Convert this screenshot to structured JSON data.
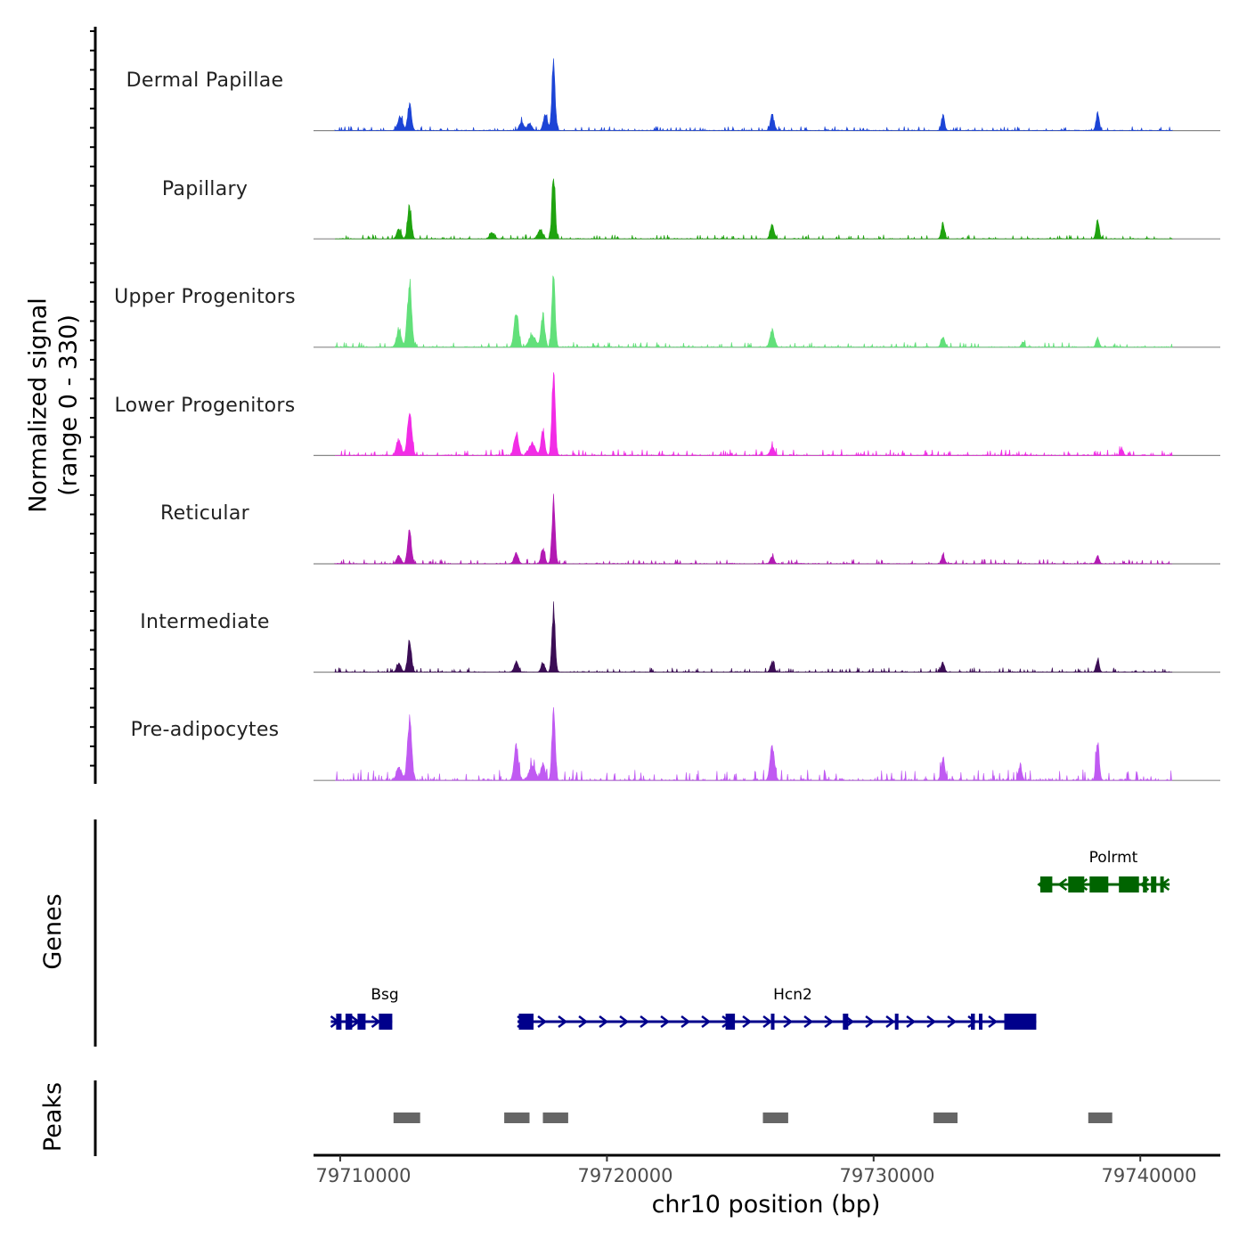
{
  "chart_data": {
    "type": "area",
    "title": "",
    "ylabel": "Normalized signal\n(range 0 - 330)",
    "ylabel_lines": [
      "Normalized signal",
      "(range 0 - 330)"
    ],
    "xlabel": "chr10 position (bp)",
    "y_range": [
      0,
      330
    ],
    "xlim": [
      79709000,
      79743000
    ],
    "x_ticks": [
      79710000,
      79720000,
      79730000,
      79740000
    ],
    "x_tick_labels": [
      "79710000",
      "79720000",
      "79730000",
      "79740000"
    ],
    "grid": false,
    "tracks": [
      {
        "name": "Dermal Papillae",
        "color": "#1c44d6",
        "bg_level": 9,
        "peaks": [
          {
            "pos": 79712250,
            "height": 65,
            "width": 90
          },
          {
            "pos": 79712600,
            "height": 122,
            "width": 70
          },
          {
            "pos": 79716800,
            "height": 42,
            "width": 80
          },
          {
            "pos": 79717100,
            "height": 35,
            "width": 80
          },
          {
            "pos": 79717700,
            "height": 75,
            "width": 80
          },
          {
            "pos": 79718000,
            "height": 305,
            "width": 60
          },
          {
            "pos": 79726200,
            "height": 70,
            "width": 70
          },
          {
            "pos": 79732600,
            "height": 70,
            "width": 60
          },
          {
            "pos": 79738400,
            "height": 80,
            "width": 60
          }
        ]
      },
      {
        "name": "Papillary",
        "color": "#1fa30f",
        "bg_level": 9,
        "peaks": [
          {
            "pos": 79712200,
            "height": 45,
            "width": 80
          },
          {
            "pos": 79712600,
            "height": 155,
            "width": 70
          },
          {
            "pos": 79715700,
            "height": 30,
            "width": 90
          },
          {
            "pos": 79717500,
            "height": 45,
            "width": 90
          },
          {
            "pos": 79718000,
            "height": 305,
            "width": 60
          },
          {
            "pos": 79726200,
            "height": 70,
            "width": 70
          },
          {
            "pos": 79732600,
            "height": 80,
            "width": 60
          },
          {
            "pos": 79738400,
            "height": 90,
            "width": 60
          }
        ]
      },
      {
        "name": "Upper Progenitors",
        "color": "#62e07a",
        "bg_level": 11,
        "peaks": [
          {
            "pos": 79712200,
            "height": 75,
            "width": 90
          },
          {
            "pos": 79712600,
            "height": 305,
            "width": 80
          },
          {
            "pos": 79716600,
            "height": 160,
            "width": 80
          },
          {
            "pos": 79717200,
            "height": 60,
            "width": 120
          },
          {
            "pos": 79717600,
            "height": 155,
            "width": 70
          },
          {
            "pos": 79718000,
            "height": 340,
            "width": 60
          },
          {
            "pos": 79726200,
            "height": 80,
            "width": 80
          },
          {
            "pos": 79732600,
            "height": 45,
            "width": 70
          },
          {
            "pos": 79735600,
            "height": 25,
            "width": 60
          },
          {
            "pos": 79738400,
            "height": 45,
            "width": 60
          }
        ]
      },
      {
        "name": "Lower Progenitors",
        "color": "#f22ce6",
        "bg_level": 14,
        "peaks": [
          {
            "pos": 79712200,
            "height": 75,
            "width": 90
          },
          {
            "pos": 79712600,
            "height": 205,
            "width": 80
          },
          {
            "pos": 79716600,
            "height": 110,
            "width": 80
          },
          {
            "pos": 79717200,
            "height": 55,
            "width": 120
          },
          {
            "pos": 79717600,
            "height": 110,
            "width": 70
          },
          {
            "pos": 79718000,
            "height": 395,
            "width": 60
          },
          {
            "pos": 79726200,
            "height": 40,
            "width": 80
          },
          {
            "pos": 79739300,
            "height": 30,
            "width": 60
          }
        ]
      },
      {
        "name": "Reticular",
        "color": "#b21ab3",
        "bg_level": 10,
        "peaks": [
          {
            "pos": 79712200,
            "height": 40,
            "width": 80
          },
          {
            "pos": 79712600,
            "height": 160,
            "width": 70
          },
          {
            "pos": 79716600,
            "height": 50,
            "width": 80
          },
          {
            "pos": 79717600,
            "height": 70,
            "width": 70
          },
          {
            "pos": 79718000,
            "height": 305,
            "width": 60
          },
          {
            "pos": 79726200,
            "height": 35,
            "width": 70
          },
          {
            "pos": 79732600,
            "height": 40,
            "width": 60
          },
          {
            "pos": 79738400,
            "height": 38,
            "width": 60
          }
        ]
      },
      {
        "name": "Intermediate",
        "color": "#3b0d55",
        "bg_level": 10,
        "peaks": [
          {
            "pos": 79712200,
            "height": 40,
            "width": 80
          },
          {
            "pos": 79712600,
            "height": 150,
            "width": 70
          },
          {
            "pos": 79716600,
            "height": 45,
            "width": 80
          },
          {
            "pos": 79717600,
            "height": 45,
            "width": 70
          },
          {
            "pos": 79718000,
            "height": 300,
            "width": 60
          },
          {
            "pos": 79726200,
            "height": 45,
            "width": 70
          },
          {
            "pos": 79732600,
            "height": 45,
            "width": 60
          },
          {
            "pos": 79738400,
            "height": 55,
            "width": 60
          }
        ]
      },
      {
        "name": "Pre-adipocytes",
        "color": "#c05af2",
        "bg_level": 24,
        "peaks": [
          {
            "pos": 79712200,
            "height": 60,
            "width": 90
          },
          {
            "pos": 79712600,
            "height": 275,
            "width": 80
          },
          {
            "pos": 79716600,
            "height": 160,
            "width": 80
          },
          {
            "pos": 79717200,
            "height": 70,
            "width": 120
          },
          {
            "pos": 79717600,
            "height": 80,
            "width": 70
          },
          {
            "pos": 79718000,
            "height": 330,
            "width": 60
          },
          {
            "pos": 79726200,
            "height": 165,
            "width": 80
          },
          {
            "pos": 79732600,
            "height": 100,
            "width": 70
          },
          {
            "pos": 79735500,
            "height": 75,
            "width": 60
          },
          {
            "pos": 79738400,
            "height": 175,
            "width": 60
          }
        ]
      }
    ],
    "genes_label": "Genes",
    "genes": [
      {
        "name": "Bsg",
        "strand": "+",
        "start": 79709650,
        "end": 79711950,
        "color": "#00008b",
        "exons": [
          [
            79709850,
            79710050
          ],
          [
            79710200,
            79710450
          ],
          [
            79710650,
            79710950
          ],
          [
            79711450,
            79711950
          ]
        ]
      },
      {
        "name": "Hcn2",
        "strand": "+",
        "start": 79716650,
        "end": 79736100,
        "color": "#00008b",
        "exons": [
          [
            79716700,
            79717250
          ],
          [
            79724450,
            79724800
          ],
          [
            79726150,
            79726250
          ],
          [
            79728850,
            79729050
          ],
          [
            79730800,
            79730900
          ],
          [
            79733650,
            79733800
          ],
          [
            79733950,
            79734050
          ],
          [
            79734900,
            79736100
          ]
        ]
      },
      {
        "name": "Polrmt",
        "strand": "-",
        "start": 79736200,
        "end": 79741100,
        "color": "#006400",
        "exons": [
          [
            79736250,
            79736700
          ],
          [
            79737300,
            79737900
          ],
          [
            79738100,
            79738800
          ],
          [
            79739200,
            79739950
          ],
          [
            79740100,
            79740250
          ],
          [
            79740400,
            79740600
          ],
          [
            79740750,
            79740850
          ]
        ]
      }
    ],
    "peaks_label": "Peaks",
    "peak_regions": [
      [
        79712000,
        79713000
      ],
      [
        79716150,
        79717100
      ],
      [
        79717600,
        79718550
      ],
      [
        79725850,
        79726800
      ],
      [
        79732250,
        79733150
      ],
      [
        79738050,
        79738950
      ]
    ]
  }
}
